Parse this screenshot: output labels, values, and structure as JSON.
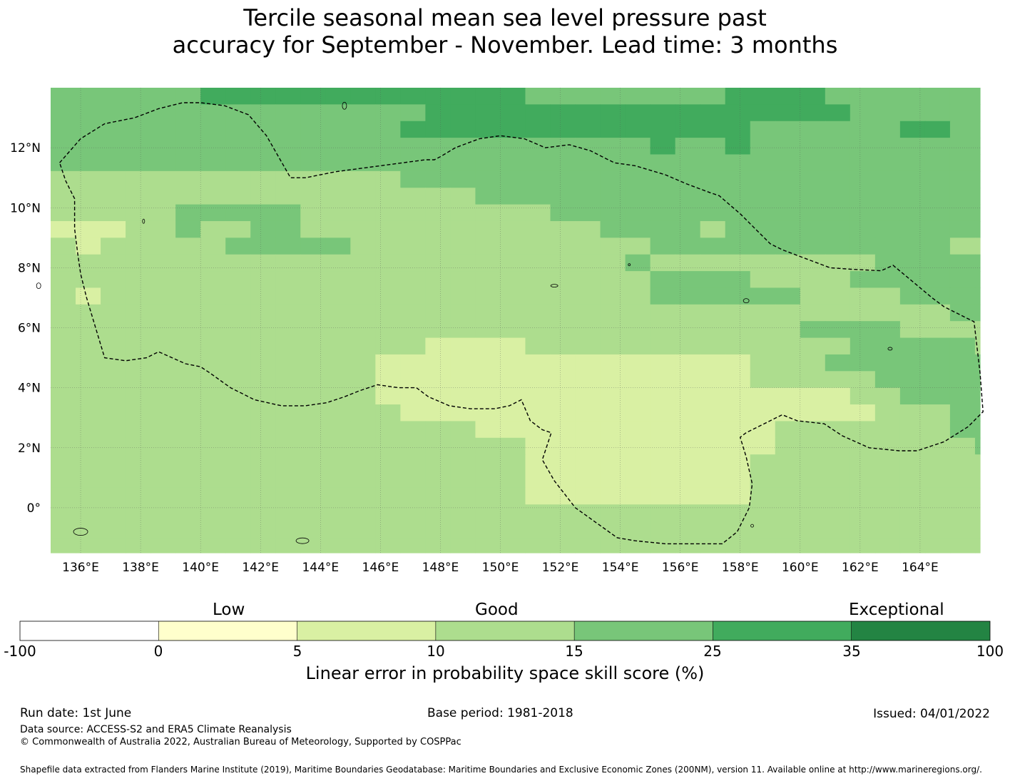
{
  "title": {
    "line1": "Tercile seasonal mean sea level pressure past",
    "line2": "accuracy for September - November. Lead time: 3 months"
  },
  "map": {
    "lon_range": [
      135,
      166
    ],
    "lat_range": [
      -1.5,
      14
    ],
    "lon_ticks": [
      "136°E",
      "138°E",
      "140°E",
      "142°E",
      "144°E",
      "146°E",
      "148°E",
      "150°E",
      "152°E",
      "154°E",
      "156°E",
      "158°E",
      "160°E",
      "162°E",
      "164°E"
    ],
    "lon_tick_values": [
      136,
      138,
      140,
      142,
      144,
      146,
      148,
      150,
      152,
      154,
      156,
      158,
      160,
      162,
      164
    ],
    "lat_ticks": [
      "12°N",
      "10°N",
      "8°N",
      "6°N",
      "4°N",
      "2°N",
      "0°"
    ],
    "lat_tick_values": [
      12,
      10,
      8,
      6,
      4,
      2,
      0
    ],
    "boundary_path": [
      [
        135.3,
        11.5
      ],
      [
        136.0,
        12.3
      ],
      [
        136.8,
        12.8
      ],
      [
        137.8,
        13.0
      ],
      [
        138.6,
        13.3
      ],
      [
        139.4,
        13.5
      ],
      [
        140.0,
        13.5
      ],
      [
        140.8,
        13.4
      ],
      [
        141.6,
        13.1
      ],
      [
        142.2,
        12.4
      ],
      [
        143.0,
        11.0
      ],
      [
        143.5,
        11.0
      ],
      [
        144.5,
        11.2
      ],
      [
        146.0,
        11.4
      ],
      [
        147.5,
        11.6
      ],
      [
        147.8,
        11.6
      ],
      [
        148.0,
        11.7
      ],
      [
        148.5,
        12.0
      ],
      [
        149.3,
        12.3
      ],
      [
        150.0,
        12.4
      ],
      [
        150.8,
        12.3
      ],
      [
        151.5,
        12.0
      ],
      [
        152.3,
        12.1
      ],
      [
        153.0,
        11.9
      ],
      [
        153.8,
        11.5
      ],
      [
        154.5,
        11.4
      ],
      [
        155.5,
        11.1
      ],
      [
        156.2,
        10.8
      ],
      [
        157.0,
        10.5
      ],
      [
        157.3,
        10.4
      ],
      [
        158.0,
        9.8
      ],
      [
        159.0,
        8.8
      ],
      [
        159.4,
        8.6
      ],
      [
        160.2,
        8.3
      ],
      [
        161.0,
        8.0
      ],
      [
        161.7,
        7.95
      ],
      [
        162.7,
        7.9
      ],
      [
        163.1,
        8.08
      ],
      [
        163.8,
        7.5
      ],
      [
        164.4,
        7.0
      ],
      [
        164.8,
        6.7
      ],
      [
        165.8,
        6.2
      ],
      [
        166.0,
        4.5
      ],
      [
        166.1,
        3.2
      ],
      [
        165.6,
        2.7
      ],
      [
        164.8,
        2.2
      ],
      [
        163.9,
        1.9
      ],
      [
        163.3,
        1.9
      ],
      [
        162.3,
        2.0
      ],
      [
        161.4,
        2.4
      ],
      [
        160.8,
        2.8
      ],
      [
        159.9,
        2.9
      ],
      [
        159.4,
        3.1
      ],
      [
        158.8,
        2.8
      ],
      [
        158.2,
        2.5
      ],
      [
        158.0,
        2.35
      ],
      [
        158.2,
        1.7
      ],
      [
        158.4,
        0.8
      ],
      [
        158.3,
        0.0
      ],
      [
        157.9,
        -0.8
      ],
      [
        157.4,
        -1.2
      ],
      [
        156.0,
        -1.2
      ],
      [
        155.5,
        -1.2
      ],
      [
        154.5,
        -1.1
      ],
      [
        153.9,
        -1.0
      ],
      [
        153.2,
        -0.5
      ],
      [
        152.5,
        0.0
      ],
      [
        151.8,
        0.9
      ],
      [
        151.4,
        1.6
      ],
      [
        151.6,
        2.2
      ],
      [
        151.7,
        2.5
      ],
      [
        151.4,
        2.6
      ],
      [
        151.0,
        2.9
      ],
      [
        150.7,
        3.6
      ],
      [
        150.3,
        3.4
      ],
      [
        149.8,
        3.3
      ],
      [
        149.0,
        3.3
      ],
      [
        148.3,
        3.4
      ],
      [
        147.6,
        3.7
      ],
      [
        147.2,
        4.0
      ],
      [
        146.6,
        4.0
      ],
      [
        145.9,
        4.1
      ],
      [
        145.3,
        3.9
      ],
      [
        144.8,
        3.7
      ],
      [
        144.2,
        3.5
      ],
      [
        143.5,
        3.4
      ],
      [
        142.7,
        3.4
      ],
      [
        141.8,
        3.6
      ],
      [
        141.0,
        4.0
      ],
      [
        140.3,
        4.5
      ],
      [
        140.0,
        4.7
      ],
      [
        139.5,
        4.8
      ],
      [
        138.6,
        5.2
      ],
      [
        138.2,
        5.0
      ],
      [
        137.5,
        4.9
      ],
      [
        136.8,
        5.0
      ],
      [
        136.5,
        6.0
      ],
      [
        136.2,
        7.0
      ],
      [
        136.0,
        7.8
      ],
      [
        135.9,
        8.5
      ],
      [
        135.8,
        9.3
      ],
      [
        135.8,
        10.3
      ],
      [
        135.5,
        10.9
      ],
      [
        135.3,
        11.5
      ]
    ]
  },
  "grid": {
    "lon0": 135,
    "lat0": 14,
    "cell_lon": 0.8333,
    "cell_lat": 0.5556,
    "rows": [
      "44444455555555555554444444455554444444",
      "44444444444444455555555555555555444444",
      "44444444444444555555555555554444445544",
      "44444444444444444444444454454444444444",
      "44444444444444444444444444444444444444",
      "33333333333333444444444444444444444444",
      "33333333333333333444444444444444444444",
      "33333444443333333333444444444444444444",
      "22233433443333333333334444344444444444",
      "32333334444433333333333344444444444433",
      "33333333333333333333333433333333344444",
      "33333333333333333333333344443333444444",
      "32333333333333333333333344444433334444",
      "33333333333333333333333333333333333344",
      "33333333333333333333333333333344443333",
      "33333333333333322223333333333333444443",
      "33333333333332222222222222223334444444",
      "33333333333332222222222222223333344444",
      "33333333333332222222222222222222334444",
      "33333333333333222222222222222222233344",
      "33333333333333333222222222222333333344",
      "33333333333333333332222222222333333334",
      "33333333333333333332222222223333333333",
      "33333333333333333332222222223333333333",
      "33333333333333333332222222223333333333",
      "33333333333333333333333333333333333333",
      "33333333333333333333333333333333333333",
      "33333333333333333333333333333333333333",
      "33333333333333333333333333333333333333"
    ]
  },
  "legend": {
    "categories": [
      "Low",
      "Good",
      "Exceptional"
    ],
    "tick_labels": [
      "-100",
      "0",
      "5",
      "10",
      "15",
      "25",
      "35",
      "100"
    ],
    "colors": [
      "#ffffff",
      "#ffffcc",
      "#d9f0a3",
      "#addd8e",
      "#78c679",
      "#41ab5d",
      "#238443"
    ],
    "title": "Linear error in probability space skill score (%)"
  },
  "footer": {
    "run_date": "Run date: 1st June",
    "base_period": "Base period: 1981-2018",
    "issued": "Issued: 04/01/2022",
    "data_source": "Data source: ACCESS-S2 and ERA5 Climate Reanalysis",
    "copyright": "© Commonwealth of Australia 2022, Australian Bureau of Meteorology, Supported by COSPPac",
    "shapefile": "Shapefile data extracted from Flanders Marine Institute (2019), Maritime Boundaries Geodatabase: Maritime Boundaries and Exclusive Economic Zones (200NM), version 11. Available online at http://www.marineregions.org/."
  }
}
